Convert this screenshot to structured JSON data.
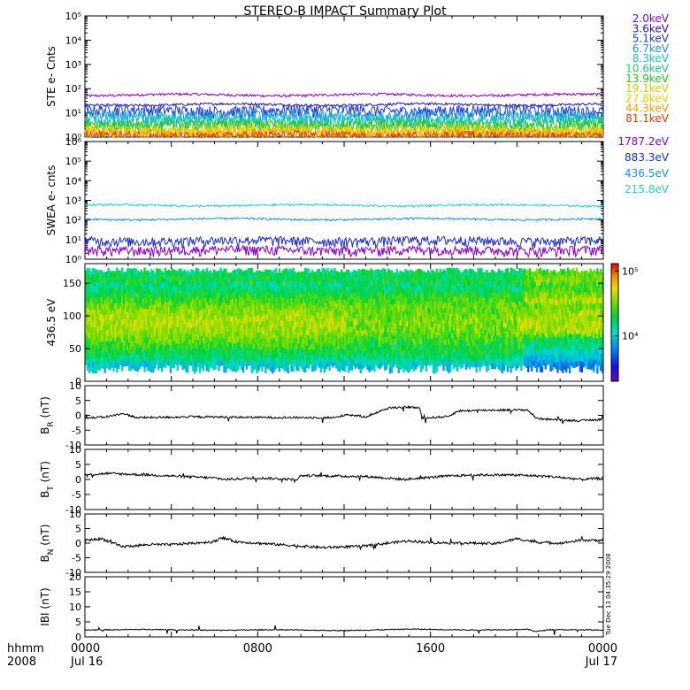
{
  "title": "STEREO-B IMPACT Summary Plot",
  "footer": {
    "left_top": "hhmm",
    "left_bottom": "2008",
    "tick_labels": [
      "0000",
      "0800",
      "1600",
      "0000"
    ],
    "date_labels": [
      "Jul 16",
      "",
      "",
      "Jul 17"
    ]
  },
  "timestamp": "Tue Dec 13 04:35:29 2008",
  "chart_data": [
    {
      "type": "line",
      "name": "ste",
      "ylabel": "STE e- Cnts",
      "y_scale": "log",
      "ylim": [
        1,
        100000
      ],
      "ytick_labels": [
        "10⁰",
        "10¹",
        "10²",
        "10³",
        "10⁴",
        "10⁵"
      ],
      "x_range_hours": [
        0,
        24
      ],
      "series": [
        {
          "name": "2.0keV",
          "color": "#8a00c4",
          "level": 55
        },
        {
          "name": "3.6keV",
          "color": "#2b0fa8",
          "level": 22
        },
        {
          "name": "5.1keV",
          "color": "#1c3bd6",
          "level": 13
        },
        {
          "name": "6.7keV",
          "color": "#1a90e0",
          "level": 8
        },
        {
          "name": "8.3keV",
          "color": "#18c8c8",
          "level": 5.5
        },
        {
          "name": "10.6keV",
          "color": "#20c880",
          "level": 4
        },
        {
          "name": "13.9keV",
          "color": "#28c020",
          "level": 3
        },
        {
          "name": "19.1keV",
          "color": "#c8d000",
          "level": 2.2
        },
        {
          "name": "27.8keV",
          "color": "#f2cf00",
          "level": 1.7
        },
        {
          "name": "44.3keV",
          "color": "#f2a000",
          "level": 1.35
        },
        {
          "name": "81.1keV",
          "color": "#e53900",
          "level": 1.1
        }
      ]
    },
    {
      "type": "line",
      "name": "swea",
      "ylabel": "SWEA e- cnts",
      "y_scale": "log",
      "ylim": [
        1,
        1000000
      ],
      "ytick_labels": [
        "10⁰",
        "10¹",
        "10²",
        "10³",
        "10⁴",
        "10⁵",
        "10⁶"
      ],
      "x_range_hours": [
        0,
        24
      ],
      "series": [
        {
          "name": "1787.2eV",
          "color": "#8a00c4",
          "level": 3
        },
        {
          "name": "883.3eV",
          "color": "#1c2bd0",
          "level": 9
        },
        {
          "name": "436.5eV",
          "color": "#1a90e0",
          "level": 110
        },
        {
          "name": "215.8eV",
          "color": "#22d0c8",
          "level": 560
        }
      ]
    },
    {
      "type": "heatmap",
      "name": "pitch-angle",
      "ylabel": "436.5 eV",
      "ylim": [
        0,
        180
      ],
      "ytick_labels": [
        "0",
        "50",
        "100",
        "150"
      ],
      "yticks": [
        0,
        50,
        100,
        150
      ],
      "colorbar": {
        "scale": "log",
        "range": [
          2000,
          130000
        ],
        "tick_labels": [
          "10⁴",
          "10⁵"
        ],
        "ticks": [
          10000,
          100000
        ]
      }
    },
    {
      "type": "line",
      "name": "br",
      "ylabel": "B",
      "ylabel_sub": "R",
      "ylabel_unit": "(nT)",
      "ylim": [
        -10,
        10
      ],
      "ytick_labels": [
        "-10",
        "-5",
        "0",
        "5",
        "10"
      ],
      "yticks": [
        -10,
        -5,
        0,
        5,
        10
      ],
      "base": [
        [
          0,
          -1
        ],
        [
          1,
          -0.5
        ],
        [
          1.8,
          0.6
        ],
        [
          2.4,
          -0.8
        ],
        [
          5,
          -0.5
        ],
        [
          8,
          -0.7
        ],
        [
          11.6,
          -0.8
        ],
        [
          12.1,
          0.3
        ],
        [
          13,
          -0.5
        ],
        [
          14.1,
          2.6
        ],
        [
          15,
          2.8
        ],
        [
          15.5,
          2.5
        ],
        [
          15.6,
          -1
        ],
        [
          16.8,
          -0.4
        ],
        [
          17.3,
          1.5
        ],
        [
          19,
          1.8
        ],
        [
          20.5,
          1.8
        ],
        [
          20.9,
          -1
        ],
        [
          22,
          -1.6
        ],
        [
          23,
          -1.8
        ],
        [
          24,
          -1.3
        ]
      ],
      "noise": 0.35
    },
    {
      "type": "line",
      "name": "bt",
      "ylabel": "B",
      "ylabel_sub": "T",
      "ylabel_unit": "(nT)",
      "ylim": [
        -10,
        10
      ],
      "ytick_labels": [
        "-10",
        "-5",
        "0",
        "5",
        "10"
      ],
      "yticks": [
        -10,
        -5,
        0,
        5,
        10
      ],
      "base": [
        [
          0,
          1.5
        ],
        [
          1,
          2
        ],
        [
          3,
          1.5
        ],
        [
          6,
          0.5
        ],
        [
          6.5,
          0
        ],
        [
          8,
          0.5
        ],
        [
          9.8,
          0
        ],
        [
          10,
          1.3
        ],
        [
          13,
          1
        ],
        [
          14.8,
          0
        ],
        [
          16.5,
          1
        ],
        [
          18,
          1.5
        ],
        [
          20,
          1.5
        ],
        [
          21.5,
          1
        ],
        [
          23,
          0
        ],
        [
          24,
          0.5
        ]
      ],
      "noise": 0.4
    },
    {
      "type": "line",
      "name": "bn",
      "ylabel": "B",
      "ylabel_sub": "N",
      "ylabel_unit": "(nT)",
      "ylim": [
        -10,
        10
      ],
      "ytick_labels": [
        "-10",
        "-5",
        "0",
        "5",
        "10"
      ],
      "yticks": [
        -10,
        -5,
        0,
        5,
        10
      ],
      "base": [
        [
          0,
          1
        ],
        [
          0.8,
          1.5
        ],
        [
          1.7,
          -1.2
        ],
        [
          3,
          -0.5
        ],
        [
          4,
          -0.5
        ],
        [
          6,
          0.5
        ],
        [
          6.3,
          2
        ],
        [
          7,
          0.5
        ],
        [
          9,
          -0.5
        ],
        [
          11,
          -1.5
        ],
        [
          13,
          -1
        ],
        [
          14,
          0
        ],
        [
          15,
          0.8
        ],
        [
          16,
          0.2
        ],
        [
          18,
          0
        ],
        [
          19,
          -0.2
        ],
        [
          20,
          1.5
        ],
        [
          21,
          0.3
        ],
        [
          22,
          0
        ],
        [
          23,
          1
        ],
        [
          24,
          1
        ]
      ],
      "noise": 0.45
    },
    {
      "type": "line",
      "name": "bmag",
      "ylabel": "IBI (nT)",
      "ylim": [
        0,
        20
      ],
      "ytick_labels": [
        "0",
        "5",
        "10",
        "15",
        "20"
      ],
      "yticks": [
        0,
        5,
        10,
        15,
        20
      ],
      "base": [
        [
          0,
          2.3
        ],
        [
          3,
          2.5
        ],
        [
          6,
          2.2
        ],
        [
          9,
          2.4
        ],
        [
          12,
          2.1
        ],
        [
          15,
          2.6
        ],
        [
          18,
          2.3
        ],
        [
          20.5,
          2.5
        ],
        [
          20.9,
          1.8
        ],
        [
          21.5,
          2.4
        ],
        [
          24,
          2.3
        ]
      ],
      "noise": 0.15
    }
  ]
}
